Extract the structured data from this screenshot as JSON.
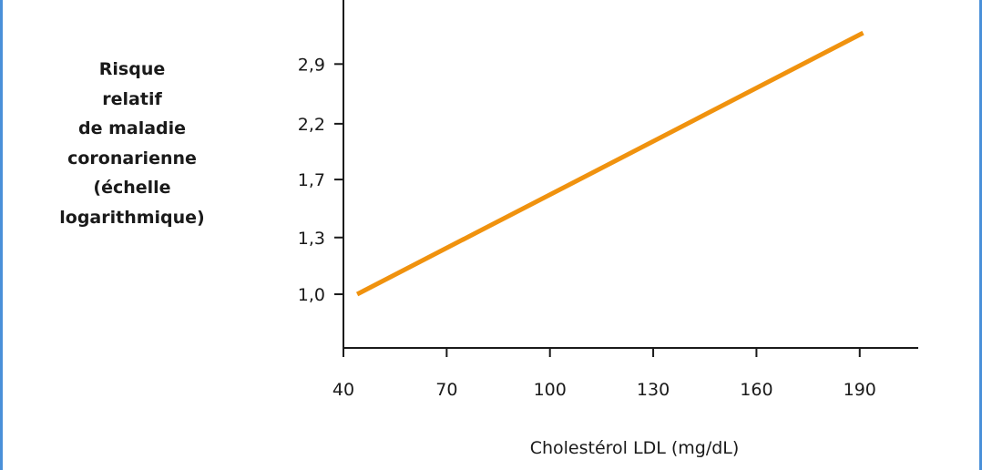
{
  "chart_data": {
    "type": "line",
    "title": "",
    "ylabel_lines": [
      "Risque",
      "relatif",
      "de maladie",
      "coronarienne",
      "(échelle",
      "logarithmique)"
    ],
    "xlabel": "Cholestérol LDL (mg/dL)",
    "y_scale": "log",
    "x_ticks": [
      40,
      70,
      100,
      130,
      160,
      190
    ],
    "x_tick_labels": [
      "40",
      "70",
      "100",
      "130",
      "160",
      "190"
    ],
    "y_ticks": [
      1.0,
      1.3,
      1.7,
      2.2,
      2.9
    ],
    "y_tick_labels": [
      "1,0",
      "1,3",
      "1,7",
      "2,2",
      "2,9"
    ],
    "xlim": [
      40,
      207
    ],
    "ylim": [
      0.78,
      3.9
    ],
    "grid": false,
    "series": [
      {
        "x": [
          44,
          191
        ],
        "y": [
          1.0,
          3.35
        ]
      }
    ],
    "colors": {
      "line": "#f0920e",
      "axis": "#1a1a1a",
      "frame": "#4a90d9"
    }
  }
}
